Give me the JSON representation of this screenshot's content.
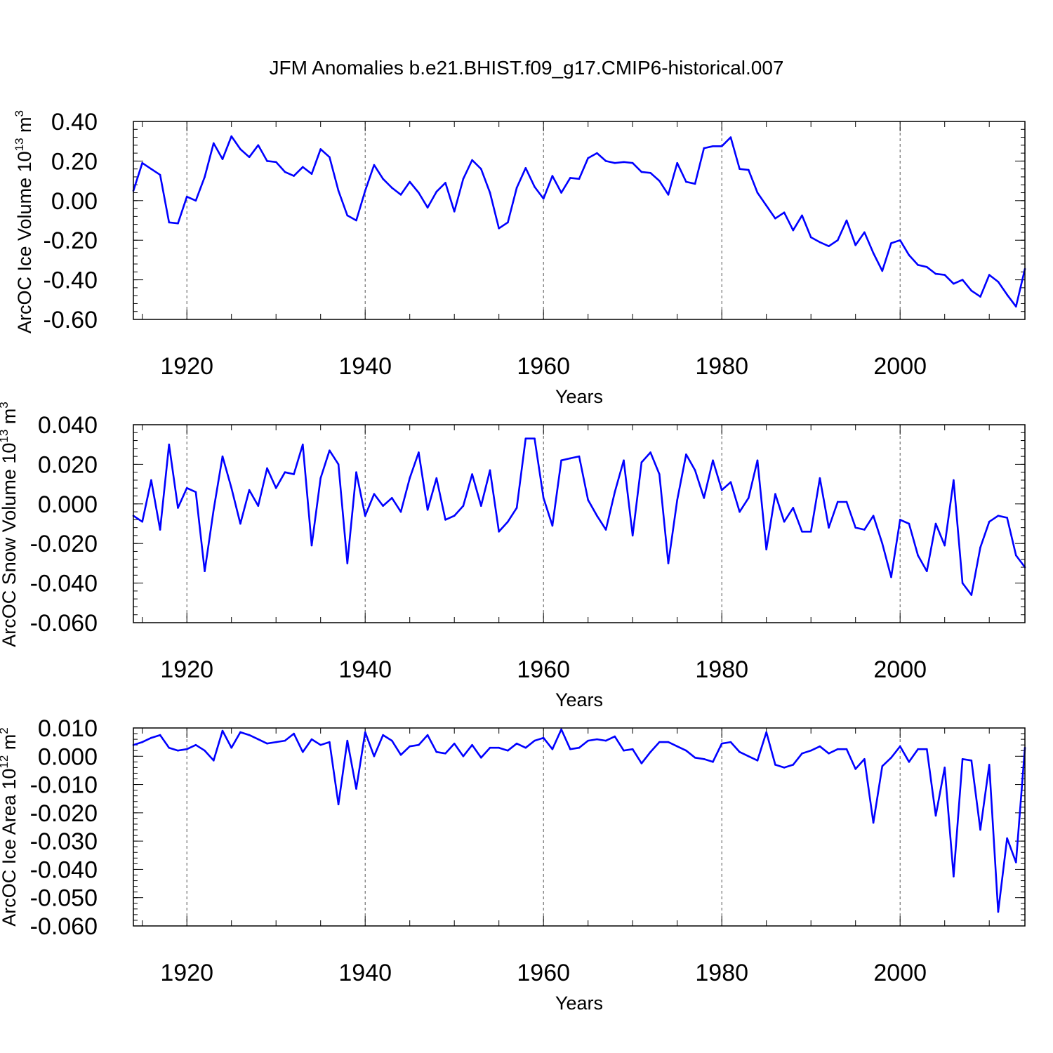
{
  "chart_data": {
    "title": "JFM Anomalies b.e21.BHIST.f09_g17.CMIP6-historical.007",
    "type": "line",
    "line_color": "#0000ff",
    "x_start": 1914,
    "x_range": [
      1914,
      2014
    ],
    "x_ticks": [
      1920,
      1940,
      1960,
      1980,
      2000
    ],
    "panels": [
      {
        "id": "ice-volume",
        "xlabel": "Years",
        "ylabel": {
          "text": "ArcOC Ice Volume 10",
          "sup": "13",
          "unit": " m",
          "unit_sup": "3"
        },
        "ylim": [
          -0.6,
          0.4
        ],
        "y_ticks": [
          0.4,
          0.2,
          0.0,
          -0.2,
          -0.4,
          -0.6
        ],
        "y_tick_labels": [
          "0.40",
          "0.20",
          "0.00",
          "-0.20",
          "-0.40",
          "-0.60"
        ],
        "grid": "dashed-vertical-at-major-x-ticks",
        "values": [
          0.05,
          0.19,
          0.16,
          0.13,
          -0.11,
          -0.115,
          0.02,
          0.0,
          0.12,
          0.29,
          0.21,
          0.325,
          0.26,
          0.22,
          0.28,
          0.2,
          0.195,
          0.145,
          0.125,
          0.17,
          0.135,
          0.26,
          0.22,
          0.05,
          -0.075,
          -0.1,
          0.05,
          0.18,
          0.11,
          0.065,
          0.03,
          0.095,
          0.04,
          -0.035,
          0.045,
          0.09,
          -0.055,
          0.11,
          0.205,
          0.16,
          0.04,
          -0.14,
          -0.11,
          0.065,
          0.165,
          0.07,
          0.01,
          0.125,
          0.04,
          0.115,
          0.11,
          0.215,
          0.24,
          0.2,
          0.19,
          0.195,
          0.19,
          0.145,
          0.14,
          0.1,
          0.03,
          0.19,
          0.095,
          0.085,
          0.265,
          0.275,
          0.275,
          0.32,
          0.16,
          0.155,
          0.04,
          -0.025,
          -0.09,
          -0.06,
          -0.15,
          -0.075,
          -0.185,
          -0.21,
          -0.23,
          -0.2,
          -0.1,
          -0.225,
          -0.16,
          -0.265,
          -0.355,
          -0.215,
          -0.2,
          -0.275,
          -0.325,
          -0.335,
          -0.37,
          -0.375,
          -0.42,
          -0.4,
          -0.455,
          -0.485,
          -0.375,
          -0.41,
          -0.475,
          -0.535,
          -0.345
        ]
      },
      {
        "id": "snow-volume",
        "xlabel": "Years",
        "ylabel": {
          "text": "ArcOC Snow Volume 10",
          "sup": "13",
          "unit": " m",
          "unit_sup": "3"
        },
        "ylim": [
          -0.06,
          0.04
        ],
        "y_ticks": [
          0.04,
          0.02,
          0.0,
          -0.02,
          -0.04,
          -0.06
        ],
        "y_tick_labels": [
          "0.040",
          "0.020",
          "0.000",
          "-0.020",
          "-0.040",
          "-0.060"
        ],
        "grid": "dashed-vertical-at-major-x-ticks",
        "values": [
          -0.006,
          -0.009,
          0.012,
          -0.013,
          0.03,
          -0.002,
          0.008,
          0.006,
          -0.034,
          -0.003,
          0.024,
          0.008,
          -0.01,
          0.007,
          -0.001,
          0.018,
          0.008,
          0.016,
          0.015,
          0.03,
          -0.021,
          0.013,
          0.027,
          0.02,
          -0.03,
          0.016,
          -0.006,
          0.005,
          -0.001,
          0.003,
          -0.004,
          0.013,
          0.026,
          -0.003,
          0.013,
          -0.008,
          -0.006,
          -0.001,
          0.015,
          -0.001,
          0.017,
          -0.014,
          -0.009,
          -0.002,
          0.033,
          0.033,
          0.003,
          -0.011,
          0.022,
          0.023,
          0.024,
          0.002,
          -0.006,
          -0.013,
          0.006,
          0.022,
          -0.016,
          0.021,
          0.026,
          0.015,
          -0.03,
          0.002,
          0.025,
          0.017,
          0.003,
          0.022,
          0.007,
          0.011,
          -0.004,
          0.003,
          0.022,
          -0.023,
          0.005,
          -0.009,
          -0.002,
          -0.014,
          -0.014,
          0.013,
          -0.012,
          0.001,
          0.001,
          -0.012,
          -0.013,
          -0.006,
          -0.02,
          -0.037,
          -0.008,
          -0.01,
          -0.026,
          -0.034,
          -0.01,
          -0.021,
          0.012,
          -0.04,
          -0.046,
          -0.022,
          -0.009,
          -0.006,
          -0.007,
          -0.026,
          -0.032
        ]
      },
      {
        "id": "ice-area",
        "xlabel": "Years",
        "ylabel": {
          "text": "ArcOC Ice Area 10",
          "sup": "12",
          "unit": " m",
          "unit_sup": "2"
        },
        "ylim": [
          -0.06,
          0.01
        ],
        "y_ticks": [
          0.01,
          0.0,
          -0.01,
          -0.02,
          -0.03,
          -0.04,
          -0.05,
          -0.06
        ],
        "y_tick_labels": [
          "0.010",
          "0.000",
          "-0.010",
          "-0.020",
          "-0.030",
          "-0.040",
          "-0.050",
          "-0.060"
        ],
        "grid": "dashed-vertical-at-major-x-ticks",
        "values": [
          0.004,
          0.005,
          0.0065,
          0.0075,
          0.003,
          0.002,
          0.0025,
          0.004,
          0.002,
          -0.0015,
          0.009,
          0.003,
          0.0085,
          0.0075,
          0.006,
          0.0045,
          0.005,
          0.0055,
          0.008,
          0.0015,
          0.006,
          0.004,
          0.005,
          -0.017,
          0.0055,
          -0.0115,
          0.0085,
          0.0,
          0.0075,
          0.0055,
          0.0005,
          0.0035,
          0.004,
          0.0075,
          0.0015,
          0.001,
          0.0045,
          0.0,
          0.004,
          -0.0005,
          0.003,
          0.003,
          0.002,
          0.0045,
          0.003,
          0.0055,
          0.0065,
          0.0025,
          0.0095,
          0.0025,
          0.003,
          0.0055,
          0.006,
          0.0055,
          0.007,
          0.002,
          0.0025,
          -0.0025,
          0.0015,
          0.005,
          0.005,
          0.0035,
          0.002,
          -0.0005,
          -0.001,
          -0.002,
          0.0045,
          0.005,
          0.0015,
          0.0,
          -0.0015,
          0.0085,
          -0.003,
          -0.004,
          -0.003,
          0.001,
          0.002,
          0.0035,
          0.001,
          0.0025,
          0.0025,
          -0.0045,
          -0.001,
          -0.0235,
          -0.0035,
          -0.0005,
          0.0035,
          -0.002,
          0.0025,
          0.0025,
          -0.021,
          -0.004,
          -0.0425,
          -0.001,
          -0.0015,
          -0.026,
          -0.003,
          -0.055,
          -0.029,
          -0.0375,
          0.003
        ]
      }
    ]
  }
}
